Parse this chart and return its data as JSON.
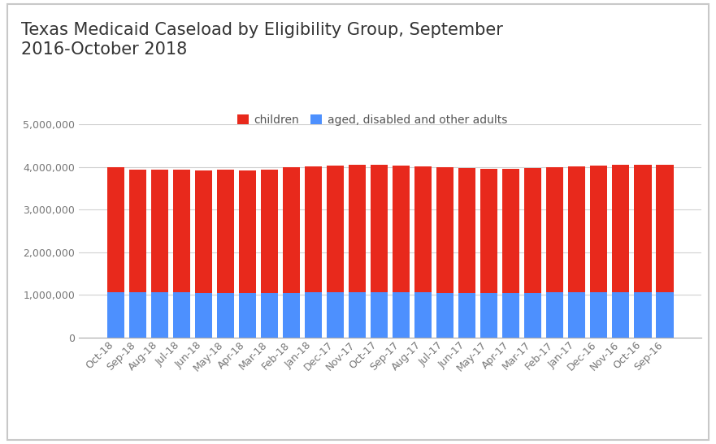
{
  "title": "Texas Medicaid Caseload by Eligibility Group, September\n2016-October 2018",
  "categories": [
    "Oct-18",
    "Sep-18",
    "Aug-18",
    "Jul-18",
    "Jun-18",
    "May-18",
    "Apr-18",
    "Mar-18",
    "Feb-18",
    "Jan-18",
    "Dec-17",
    "Nov-17",
    "Oct-17",
    "Sep-17",
    "Aug-17",
    "Jul-17",
    "Jun-17",
    "May-17",
    "Apr-17",
    "Mar-17",
    "Feb-17",
    "Jan-17",
    "Dec-16",
    "Nov-16",
    "Oct-16",
    "Sep-16"
  ],
  "children": [
    2920000,
    2880000,
    2880000,
    2880000,
    2880000,
    2890000,
    2880000,
    2890000,
    2940000,
    2960000,
    2980000,
    2990000,
    2990000,
    2980000,
    2960000,
    2940000,
    2920000,
    2910000,
    2910000,
    2920000,
    2940000,
    2960000,
    2980000,
    2990000,
    2990000,
    2990000
  ],
  "adults": [
    1070000,
    1060000,
    1060000,
    1055000,
    1045000,
    1040000,
    1040000,
    1045000,
    1050000,
    1055000,
    1060000,
    1060000,
    1060000,
    1060000,
    1055000,
    1050000,
    1050000,
    1050000,
    1050000,
    1050000,
    1055000,
    1055000,
    1060000,
    1060000,
    1060000,
    1065000
  ],
  "children_color": "#e8291c",
  "adults_color": "#4d90fe",
  "background_color": "#ffffff",
  "border_color": "#c8c8c8",
  "legend_labels": [
    "children",
    "aged, disabled and other adults"
  ],
  "ylim": [
    0,
    5000000
  ],
  "yticks": [
    0,
    1000000,
    2000000,
    3000000,
    4000000,
    5000000
  ],
  "title_fontsize": 15,
  "tick_fontsize": 9,
  "legend_fontsize": 10,
  "grid_color": "#d0d0d0",
  "tick_color": "#aaaaaa",
  "label_color": "#777777",
  "title_color": "#333333"
}
